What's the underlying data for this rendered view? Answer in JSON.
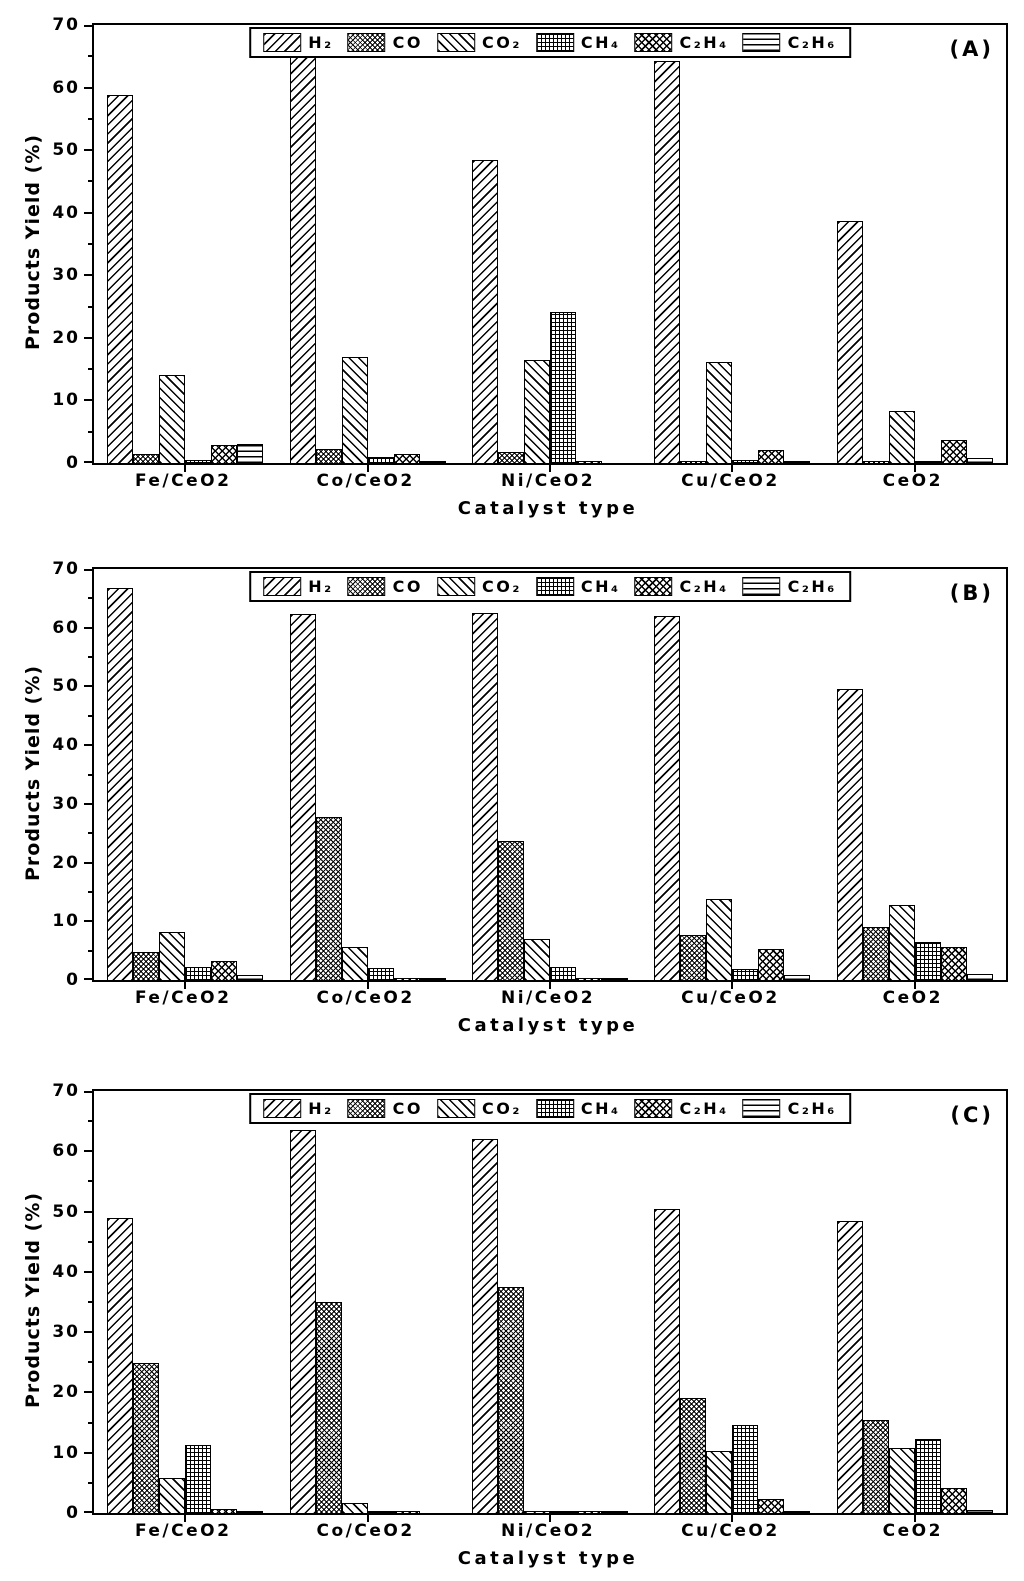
{
  "figure": {
    "y_axis_label": "Products Yield (%)",
    "x_axis_label": "Catalyst type"
  },
  "chart_data": [
    {
      "type": "bar",
      "panel_label": "(A)",
      "xlabel": "Catalyst type",
      "ylabel": "Products Yield (%)",
      "ylim": [
        0,
        70
      ],
      "y_major_tick_step": 10,
      "y_minor_tick_step": 5,
      "grid": false,
      "legend_position": "top-center",
      "categories": [
        "Fe/CeO2",
        "Co/CeO2",
        "Ni/CeO2",
        "Cu/CeO2",
        "CeO2"
      ],
      "series": [
        {
          "name": "H₂",
          "pattern": "diag-up",
          "values": [
            58.8,
            65.5,
            48.4,
            64.2,
            38.7
          ]
        },
        {
          "name": "CO",
          "pattern": "crosshatch-fine",
          "values": [
            1.5,
            2.2,
            1.8,
            0.1,
            0.2
          ]
        },
        {
          "name": "CO₂",
          "pattern": "diag-down",
          "values": [
            14.0,
            17.0,
            16.5,
            16.1,
            8.3
          ]
        },
        {
          "name": "CH₄",
          "pattern": "grid",
          "values": [
            0.4,
            0.9,
            24.2,
            0.5,
            0.2
          ]
        },
        {
          "name": "C₂H₄",
          "pattern": "crosshatch",
          "values": [
            2.8,
            1.4,
            0.1,
            2.0,
            3.7
          ]
        },
        {
          "name": "C₂H₆",
          "pattern": "hlines",
          "values": [
            3.0,
            0.1,
            0.0,
            0.2,
            0.8
          ]
        }
      ]
    },
    {
      "type": "bar",
      "panel_label": "(B)",
      "xlabel": "Catalyst type",
      "ylabel": "Products Yield (%)",
      "ylim": [
        0,
        70
      ],
      "y_major_tick_step": 10,
      "y_minor_tick_step": 5,
      "grid": false,
      "legend_position": "top-center",
      "categories": [
        "Fe/CeO2",
        "Co/CeO2",
        "Ni/CeO2",
        "Cu/CeO2",
        "CeO2"
      ],
      "series": [
        {
          "name": "H₂",
          "pattern": "diag-up",
          "values": [
            66.8,
            62.4,
            62.5,
            62.0,
            49.5
          ]
        },
        {
          "name": "CO",
          "pattern": "crosshatch-fine",
          "values": [
            4.8,
            27.7,
            23.7,
            7.7,
            9.0
          ]
        },
        {
          "name": "CO₂",
          "pattern": "diag-down",
          "values": [
            8.1,
            5.6,
            6.9,
            13.8,
            12.8
          ]
        },
        {
          "name": "CH₄",
          "pattern": "grid",
          "values": [
            2.2,
            2.1,
            2.2,
            1.8,
            6.5
          ]
        },
        {
          "name": "C₂H₄",
          "pattern": "crosshatch",
          "values": [
            3.3,
            0.2,
            0.1,
            5.2,
            5.7
          ]
        },
        {
          "name": "C₂H₆",
          "pattern": "hlines",
          "values": [
            0.9,
            0.1,
            0.1,
            0.8,
            1.0
          ]
        }
      ]
    },
    {
      "type": "bar",
      "panel_label": "(C)",
      "xlabel": "Catalyst type",
      "ylabel": "Products Yield (%)",
      "ylim": [
        0,
        70
      ],
      "y_major_tick_step": 10,
      "y_minor_tick_step": 5,
      "grid": false,
      "legend_position": "top-center",
      "categories": [
        "Fe/CeO2",
        "Co/CeO2",
        "Ni/CeO2",
        "Cu/CeO2",
        "CeO2"
      ],
      "series": [
        {
          "name": "H₂",
          "pattern": "diag-up",
          "values": [
            49.0,
            63.5,
            62.0,
            50.4,
            48.5
          ]
        },
        {
          "name": "CO",
          "pattern": "crosshatch-fine",
          "values": [
            24.8,
            35.0,
            37.5,
            19.1,
            15.5
          ]
        },
        {
          "name": "CO₂",
          "pattern": "diag-down",
          "values": [
            5.8,
            1.6,
            0.2,
            10.3,
            10.8
          ]
        },
        {
          "name": "CH₄",
          "pattern": "grid",
          "values": [
            11.2,
            0.1,
            0.1,
            14.6,
            12.2
          ]
        },
        {
          "name": "C₂H₄",
          "pattern": "crosshatch",
          "values": [
            0.6,
            0.1,
            0.4,
            2.4,
            4.2
          ]
        },
        {
          "name": "C₂H₆",
          "pattern": "hlines",
          "values": [
            0.2,
            0.0,
            0.1,
            0.3,
            0.5
          ]
        }
      ]
    }
  ]
}
